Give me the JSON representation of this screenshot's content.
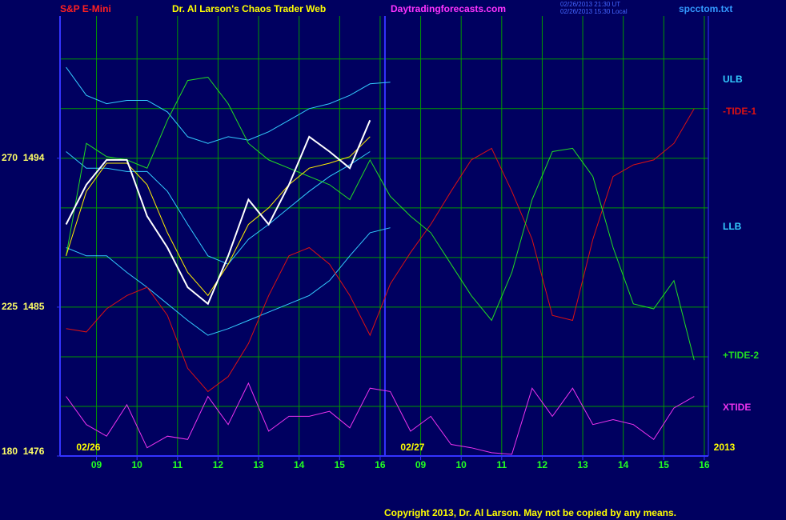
{
  "chart_data": {
    "type": "line",
    "title": "Dr. Al Larson's Chaos Trader Web",
    "symbol": "S&P E-Mini",
    "site": "Daytradingforecasts.com",
    "timestamps": [
      "02/26/2013 21:30 UT",
      "02/26/2013 15:30 Local"
    ],
    "file": "spcctom.txt",
    "copyright": "Copyright 2013, Dr. Al Larson. May not be copied by any means.",
    "dates": [
      "02/26",
      "02/27",
      "2013"
    ],
    "xlim": [
      0.1,
      16.1
    ],
    "ylim": [
      1476,
      1502.6
    ],
    "xticks": [
      {
        "value": 1,
        "label": "09"
      },
      {
        "value": 2,
        "label": "10"
      },
      {
        "value": 3,
        "label": "11"
      },
      {
        "value": 4,
        "label": "12"
      },
      {
        "value": 5,
        "label": "13"
      },
      {
        "value": 6,
        "label": "14"
      },
      {
        "value": 7,
        "label": "15"
      },
      {
        "value": 8,
        "label": "16"
      },
      {
        "value": 9,
        "label": "09"
      },
      {
        "value": 10,
        "label": "10"
      },
      {
        "value": 11,
        "label": "11"
      },
      {
        "value": 12,
        "label": "12"
      },
      {
        "value": 13,
        "label": "13"
      },
      {
        "value": 14,
        "label": "14"
      },
      {
        "value": 15,
        "label": "15"
      },
      {
        "value": 16,
        "label": "16"
      }
    ],
    "yticks": [
      {
        "value": 1494,
        "label": "270  1494"
      },
      {
        "value": 1485,
        "label": "225  1485"
      },
      {
        "value": 1476,
        "label": "180  1476"
      }
    ],
    "ygrid": [
      1479,
      1482,
      1485,
      1488,
      1491,
      1494,
      1497,
      1500
    ],
    "grid": true,
    "x": [
      0.25,
      0.75,
      1.25,
      1.75,
      2.25,
      2.75,
      3.25,
      3.75,
      4.25,
      4.75,
      5.25,
      5.75,
      6.25,
      6.75,
      7.25,
      7.75,
      8.25,
      8.75,
      9.25,
      9.75,
      10.25,
      10.75,
      11.25,
      11.75,
      12.25,
      12.75,
      13.25,
      13.75,
      14.25,
      14.75,
      15.25,
      15.75
    ],
    "series": [
      {
        "name": "ULB",
        "color": "#33ccff",
        "values": [
          1499.5,
          1497.8,
          1497.3,
          1497.5,
          1497.5,
          1496.8,
          1495.3,
          1494.9,
          1495.3,
          1495.1,
          1495.6,
          1496.3,
          1497.0,
          1497.3,
          1497.8,
          1498.5,
          1498.6,
          null,
          null,
          null,
          null,
          null,
          null,
          null,
          null,
          null,
          null,
          null,
          null,
          null,
          null,
          null
        ]
      },
      {
        "color": "#33ccff",
        "values": [
          1494.4,
          1493.4,
          1493.4,
          1493.2,
          1493.2,
          1492.0,
          1490.0,
          1488.1,
          1487.6,
          1489.1,
          1490.0,
          1491.0,
          1492.0,
          1492.9,
          1493.6,
          1494.4,
          null,
          null,
          null,
          null,
          null,
          null,
          null,
          null,
          null,
          null,
          null,
          null,
          null,
          null,
          null,
          null
        ]
      },
      {
        "name": "LLB",
        "color": "#33ccff",
        "values": [
          1488.6,
          1488.1,
          1488.1,
          1487.1,
          1486.2,
          1485.2,
          1484.2,
          1483.3,
          1483.7,
          1484.2,
          1484.7,
          1485.2,
          1485.7,
          1486.6,
          1488.1,
          1489.5,
          1489.8,
          null,
          null,
          null,
          null,
          null,
          null,
          null,
          null,
          null,
          null,
          null,
          null,
          null,
          null,
          null
        ]
      },
      {
        "name": "-TIDE-1",
        "color": "#dd1111",
        "values": [
          1483.7,
          1483.5,
          1484.9,
          1485.7,
          1486.2,
          1484.5,
          1481.3,
          1479.9,
          1480.8,
          1482.8,
          1485.7,
          1488.1,
          1488.6,
          1487.6,
          1485.7,
          1483.3,
          1486.4,
          1488.3,
          1490.0,
          1492.0,
          1493.9,
          1494.6,
          1492.0,
          1489.1,
          1484.5,
          1484.2,
          1489.1,
          1492.9,
          1493.6,
          1493.9,
          1494.9,
          1497.0
        ]
      },
      {
        "name": "+TIDE-2",
        "color": "#22dd22",
        "values": [
          1488.1,
          1494.9,
          1494.1,
          1493.9,
          1493.4,
          1496.3,
          1498.7,
          1498.9,
          1497.3,
          1494.9,
          1493.9,
          1493.4,
          1492.9,
          1492.4,
          1491.5,
          1493.9,
          1491.7,
          1490.5,
          1489.5,
          1487.6,
          1485.7,
          1484.2,
          1487.1,
          1491.5,
          1494.4,
          1494.6,
          1492.9,
          1488.6,
          1485.2,
          1484.9,
          1486.6,
          1481.8
        ]
      },
      {
        "name": "XTIDE",
        "color": "#ee33ee",
        "values": [
          1479.6,
          1477.9,
          1477.2,
          1479.1,
          1476.5,
          1477.2,
          1477.0,
          1479.6,
          1477.9,
          1480.4,
          1477.5,
          1478.4,
          1478.4,
          1478.7,
          1477.7,
          1480.1,
          1479.9,
          1477.5,
          1478.4,
          1476.7,
          1476.5,
          1476.2,
          1476.1,
          1480.1,
          1478.4,
          1480.1,
          1477.9,
          1478.2,
          1477.9,
          1477.0,
          1478.9,
          1479.6
        ]
      },
      {
        "color": "#ffee00",
        "values": [
          1488.1,
          1492.0,
          1493.7,
          1493.7,
          1492.4,
          1489.5,
          1487.1,
          1485.7,
          1487.6,
          1490.0,
          1491.0,
          1492.4,
          1493.4,
          1493.7,
          1494.1,
          1495.3,
          null,
          null,
          null,
          null,
          null,
          null,
          null,
          null,
          null,
          null,
          null,
          null,
          null,
          null,
          null,
          null
        ]
      },
      {
        "color": "#ffffff",
        "values": [
          1490.0,
          1492.4,
          1493.9,
          1493.9,
          1490.5,
          1488.6,
          1486.2,
          1485.2,
          1488.1,
          1491.5,
          1490.0,
          1492.4,
          1495.3,
          1494.4,
          1493.4,
          1496.3,
          null,
          null,
          null,
          null,
          null,
          null,
          null,
          null,
          null,
          null,
          null,
          null,
          null,
          null,
          null,
          null
        ]
      }
    ]
  }
}
